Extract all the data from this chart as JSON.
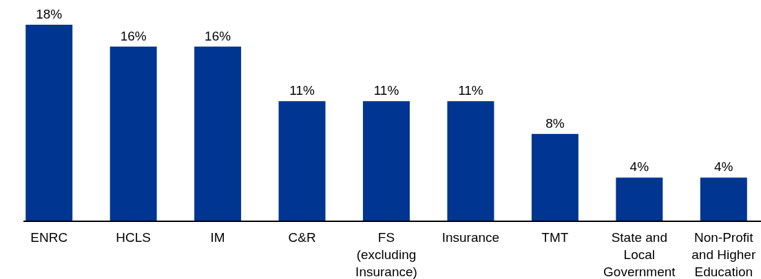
{
  "chart_data": {
    "type": "bar",
    "categories": [
      "ENRC",
      "HCLS",
      "IM",
      "C&R",
      "FS (excluding Insurance)",
      "Insurance",
      "TMT",
      "State and Local Government",
      "Non-Profit and Higher Education"
    ],
    "values": [
      18,
      16,
      16,
      11,
      11,
      11,
      8,
      4,
      4
    ],
    "value_labels": [
      "18%",
      "16%",
      "16%",
      "11%",
      "11%",
      "11%",
      "8%",
      "4%",
      "4%"
    ],
    "color": "#003591"
  }
}
